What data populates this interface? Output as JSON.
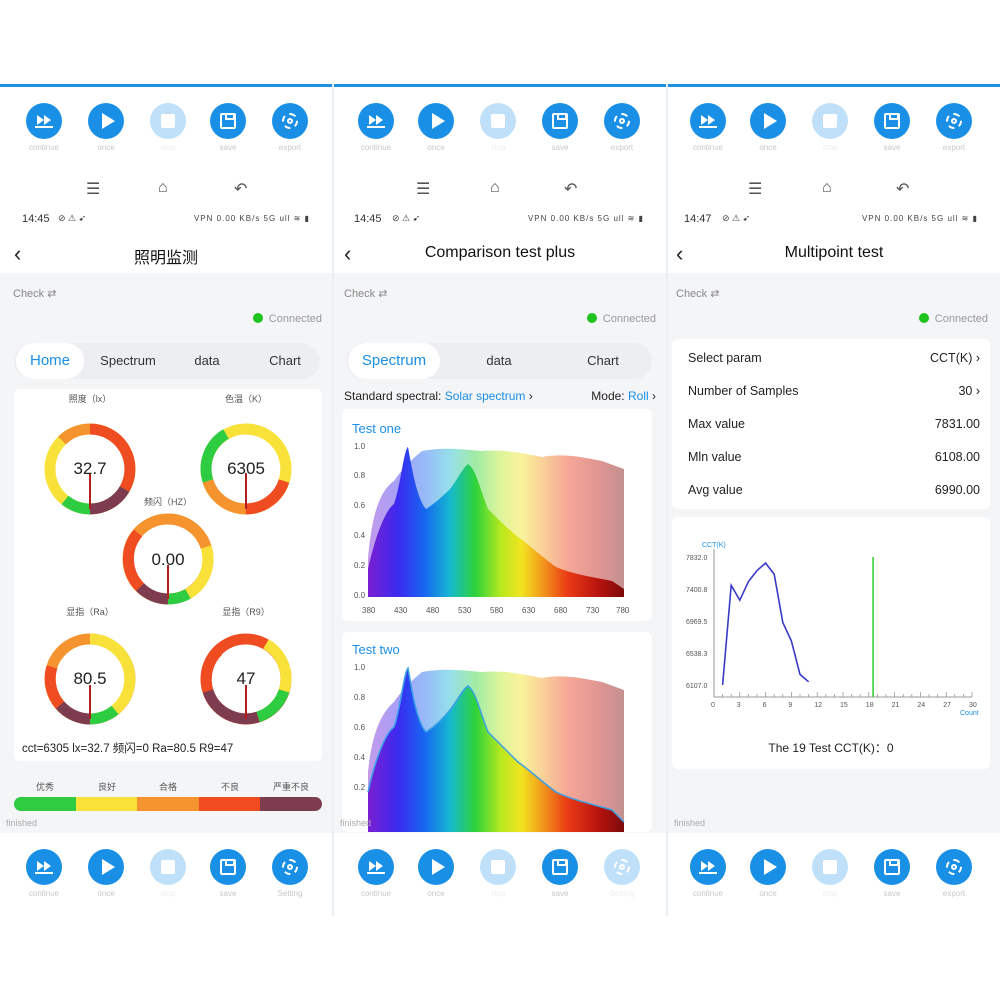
{
  "toolbar_top": {
    "p1": [
      "continue",
      "once",
      "stop",
      "save",
      "export"
    ],
    "p2": [
      "continue",
      "once",
      "stop",
      "save",
      "export"
    ],
    "p3": [
      "continue",
      "once",
      "stop",
      "save",
      "export"
    ]
  },
  "toolbar_bottom": {
    "p1": [
      "continue",
      "once",
      "stop",
      "save",
      "Setting"
    ],
    "p2": [
      "continue",
      "once",
      "stop",
      "save",
      "Setting"
    ],
    "p3": [
      "continue",
      "once",
      "stop",
      "save",
      "export"
    ]
  },
  "nav": {
    "menu": "☰",
    "home": "⌂",
    "back": "↶"
  },
  "status": {
    "p1_time": "14:45",
    "p2_time": "14:45",
    "p3_time": "14:47",
    "icons": "⊘ ⚠ ➹",
    "right_icons": "VPN 0.00 KB/s 5G ull ≋ ▮"
  },
  "panel1": {
    "title": "照明监测",
    "check": "Check ⇄",
    "connected": "Connected",
    "tabs": [
      "Home",
      "Spectrum",
      "data",
      "Chart"
    ],
    "gauges": [
      {
        "title": "照度（lx）",
        "value": "32.7"
      },
      {
        "title": "色温（K）",
        "value": "6305"
      },
      {
        "title": "频闪（HZ）",
        "value": "0.00"
      },
      {
        "title": "显指（Ra）",
        "value": "80.5"
      },
      {
        "title": "显指（R9）",
        "value": "47"
      }
    ],
    "summary": "cct=6305   lx=32.7   频闪=0   Ra=80.5   R9=47",
    "legend": [
      "优秀",
      "良好",
      "合格",
      "不良",
      "严重不良"
    ],
    "legend_colors": [
      "#2ecc40",
      "#f8e23a",
      "#f5932e",
      "#ef4c22",
      "#7d3d4e"
    ],
    "finished": "finished"
  },
  "panel2": {
    "title": "Comparison test plus",
    "check": "Check ⇄",
    "connected": "Connected",
    "tabs": [
      "Spectrum",
      "data",
      "Chart"
    ],
    "standard_label": "Standard spectral:",
    "standard_value": "Solar spectrum",
    "mode_label": "Mode:",
    "mode_value": "Roll",
    "test_one": "Test one",
    "test_two": "Test two",
    "y_ticks": [
      "1.0",
      "0.8",
      "0.6",
      "0.4",
      "0.2",
      "0.0"
    ],
    "x_ticks": [
      "380",
      "430",
      "480",
      "530",
      "580",
      "630",
      "680",
      "730",
      "780"
    ],
    "finished": "finished"
  },
  "panel3": {
    "title": "Multipoint test",
    "check": "Check ⇄",
    "connected": "Connected",
    "rows": [
      {
        "label": "Select param",
        "value": "CCT(K)  ›"
      },
      {
        "label": "Number of Samples",
        "value": "30  ›"
      },
      {
        "label": "Max value",
        "value": "7831.00"
      },
      {
        "label": "Mln value",
        "value": "6108.00"
      },
      {
        "label": "Avg value",
        "value": "6990.00"
      }
    ],
    "chart_ylabel": "CCT(K)",
    "chart_xlabel": "Count",
    "chart_caption": "The 19 Test    CCT(K)：0",
    "finished": "finished"
  },
  "chart_data": {
    "type": "line",
    "ylabel": "CCT(K)",
    "xlabel": "Count",
    "y_ticks": [
      "7832.0",
      "7400.8",
      "6969.5",
      "6538.3",
      "6107.0"
    ],
    "x_ticks": [
      0,
      3,
      6,
      9,
      12,
      15,
      18,
      21,
      24,
      27,
      30
    ],
    "ylim": [
      6107,
      7832
    ],
    "xlim": [
      0,
      30
    ],
    "series": [
      {
        "values_x": [
          1,
          2,
          3,
          4,
          5,
          6,
          7,
          8,
          9,
          10,
          11
        ],
        "values_y": [
          6108,
          7450,
          7250,
          7500,
          7650,
          7750,
          7600,
          6950,
          6700,
          6250,
          6150
        ]
      }
    ],
    "marker_x": 18.5,
    "marker_color": "#39d039"
  }
}
